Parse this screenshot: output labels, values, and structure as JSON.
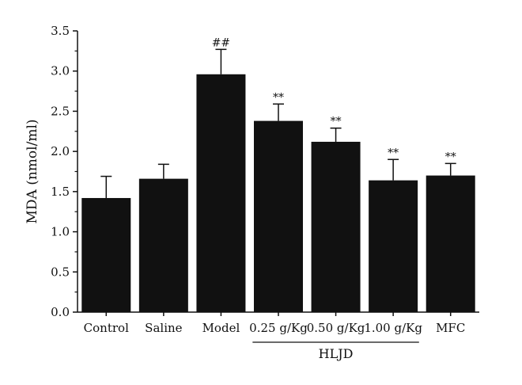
{
  "chart_data": {
    "type": "bar",
    "title": "",
    "xlabel": "",
    "ylabel": "MDA (nmol/ml)",
    "ylim": [
      0,
      3.5
    ],
    "yticks": [
      "0.0",
      "0.5",
      "1.0",
      "1.5",
      "2.0",
      "2.5",
      "3.0",
      "3.5"
    ],
    "categories": [
      "Control",
      "Saline",
      "Model",
      "0.25 g/Kg",
      "0.50 g/Kg",
      "1.00 g/Kg",
      "MFC"
    ],
    "values": [
      1.42,
      1.66,
      2.96,
      2.38,
      2.12,
      1.64,
      1.7
    ],
    "errors": [
      0.27,
      0.18,
      0.31,
      0.21,
      0.17,
      0.26,
      0.15
    ],
    "annotations": [
      "",
      "",
      "##",
      "**",
      "**",
      "**",
      "**"
    ],
    "group": {
      "label": "HLJD",
      "from_index": 3,
      "to_index": 5
    },
    "bar_color": "#111111",
    "grid": false,
    "legend": "none"
  }
}
